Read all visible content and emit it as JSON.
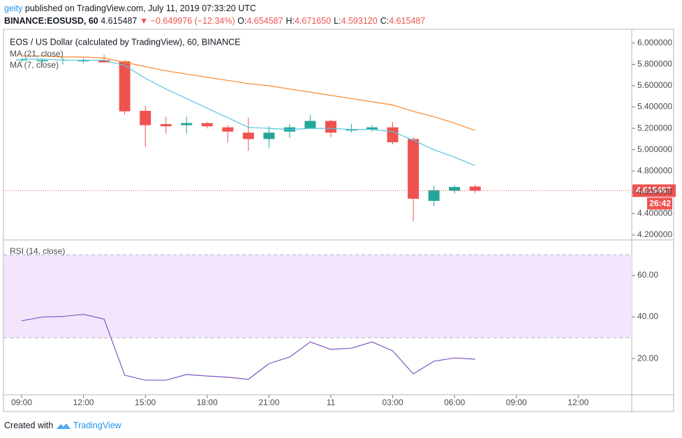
{
  "header": {
    "author": "geity",
    "published": "published on TradingView.com, July 11, 2019 07:33:20 UTC",
    "symbol": "BINANCE:EOSUSD, 60",
    "last": "4.615487",
    "change": "▼ −0.649976 (−12.34%)",
    "ohlc": [
      {
        "label": "O:",
        "value": "4.654587"
      },
      {
        "label": "H:",
        "value": "4.671650"
      },
      {
        "label": "L:",
        "value": "4.593120"
      },
      {
        "label": "C:",
        "value": "4.615487"
      }
    ]
  },
  "footer": {
    "created": "Created with",
    "brand": "TradingView"
  },
  "chart_data": [
    {
      "type": "candlestick",
      "title": "EOS / US Dollar (calculated by TradingView), 60, BINANCE",
      "categories": [
        "09:00",
        null,
        null,
        "12:00",
        null,
        null,
        "15:00",
        null,
        null,
        "18:00",
        null,
        null,
        "21:00",
        null,
        null,
        "11",
        null,
        null,
        "03:00",
        null,
        null,
        "06:00",
        null,
        null,
        "09:00",
        null,
        null,
        "12:00",
        null,
        null
      ],
      "open": [
        5.84,
        5.83,
        5.84,
        5.83,
        5.84,
        5.83,
        5.365,
        5.24,
        5.23,
        5.25,
        5.21,
        5.16,
        5.1,
        5.17,
        5.2,
        5.27,
        5.18,
        5.19,
        5.21,
        5.1,
        4.52,
        4.615,
        4.654587,
        null,
        null,
        null,
        null,
        null,
        null,
        null
      ],
      "high": [
        5.86,
        5.85,
        5.86,
        5.86,
        5.89,
        5.84,
        5.41,
        5.31,
        5.31,
        5.26,
        5.23,
        5.3,
        5.22,
        5.24,
        5.33,
        5.28,
        5.24,
        5.23,
        5.26,
        5.12,
        4.66,
        4.67,
        4.67165,
        null,
        null,
        null,
        null,
        null,
        null,
        null
      ],
      "low": [
        5.82,
        5.81,
        5.8,
        5.81,
        5.82,
        5.33,
        5.025,
        5.15,
        5.15,
        5.2,
        5.07,
        4.99,
        5.02,
        5.11,
        5.2,
        5.12,
        5.16,
        5.17,
        5.05,
        4.33,
        4.47,
        4.59,
        4.59312,
        null,
        null,
        null,
        null,
        null,
        null,
        null
      ],
      "close": [
        5.845,
        5.84,
        5.845,
        5.84,
        5.82,
        5.36,
        5.23,
        5.22,
        5.25,
        5.22,
        5.17,
        5.1,
        5.16,
        5.21,
        5.27,
        5.16,
        5.19,
        5.21,
        5.07,
        4.54,
        4.62,
        4.65,
        4.615487,
        null,
        null,
        null,
        null,
        null,
        null,
        null
      ],
      "up_color": "#26a69a",
      "down_color": "#ef5350",
      "series": [
        {
          "name": "MA (21, close)",
          "color": "#f7892b",
          "values": [
            5.88,
            5.88,
            5.87,
            5.87,
            5.86,
            5.82,
            5.78,
            5.74,
            5.71,
            5.68,
            5.65,
            5.62,
            5.6,
            5.57,
            5.54,
            5.51,
            5.48,
            5.45,
            5.42,
            5.36,
            5.31,
            5.25,
            5.18,
            null,
            null,
            null,
            null,
            null,
            null,
            null
          ]
        },
        {
          "name": "MA (7, close)",
          "color": "#53c6dc",
          "values": [
            5.85,
            5.85,
            5.84,
            5.84,
            5.84,
            5.79,
            5.67,
            5.57,
            5.48,
            5.39,
            5.3,
            5.21,
            5.2,
            5.19,
            5.2,
            5.2,
            5.19,
            5.19,
            5.17,
            5.09,
            5.0,
            4.93,
            4.85,
            null,
            null,
            null,
            null,
            null,
            null,
            null
          ]
        }
      ],
      "ylim": [
        4.16,
        6.13
      ],
      "yticks": [
        {
          "value": 4.2,
          "label": "4.200000"
        },
        {
          "value": 4.4,
          "label": "4.400000"
        },
        {
          "value": 4.6,
          "label": "4.600000"
        },
        {
          "value": 4.8,
          "label": "4.800000"
        },
        {
          "value": 5.0,
          "label": "5.000000"
        },
        {
          "value": 5.2,
          "label": "5.200000"
        },
        {
          "value": 5.4,
          "label": "5.400000"
        },
        {
          "value": 5.6,
          "label": "5.600000"
        },
        {
          "value": 5.8,
          "label": "5.800000"
        },
        {
          "value": 6.0,
          "label": "6.000000"
        }
      ],
      "last_price": 4.615487,
      "countdown": "26:42",
      "grid": false
    },
    {
      "type": "line",
      "title": "RSI (14, close)",
      "series": [
        {
          "name": "RSI (14, close)",
          "color": "#7e57c2",
          "values": [
            38.2,
            40.0,
            40.3,
            41.3,
            39.0,
            12.0,
            9.6,
            9.6,
            12.3,
            11.6,
            11.0,
            10.0,
            17.6,
            20.7,
            28.0,
            24.4,
            25.0,
            28.0,
            23.7,
            12.6,
            18.7,
            20.3,
            19.7,
            null,
            null,
            null,
            null,
            null,
            null,
            null
          ]
        }
      ],
      "band": {
        "range": [
          30,
          70
        ],
        "color": "#f3e5fc"
      },
      "ylim": [
        2.9,
        76.8
      ],
      "yticks": [
        {
          "value": 20,
          "label": "20.00"
        },
        {
          "value": 40,
          "label": "40.00"
        },
        {
          "value": 60,
          "label": "60.00"
        }
      ],
      "grid": false
    }
  ]
}
